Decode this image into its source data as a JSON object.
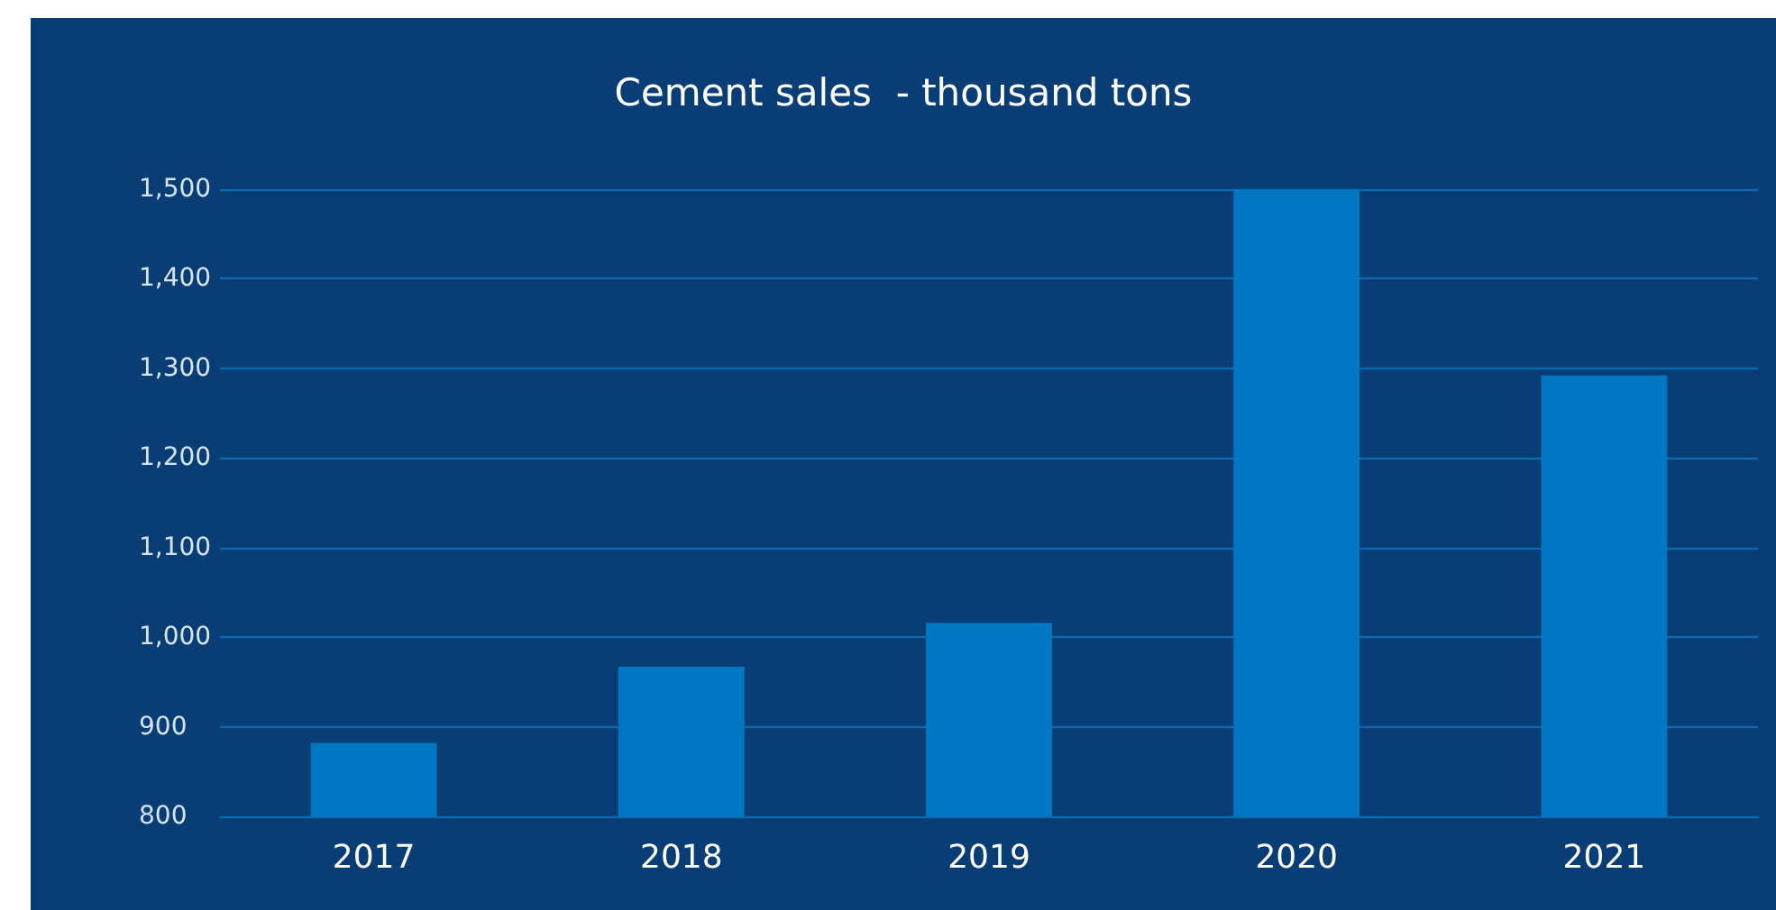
{
  "chart_data": {
    "type": "bar",
    "title": "Cement sales  - thousand tons",
    "categories": [
      "2017",
      "2018",
      "2019",
      "2020",
      "2021"
    ],
    "values": [
      882,
      967,
      1016,
      1500,
      1292
    ],
    "color": "#0077c0",
    "ylim": [
      800,
      1500
    ],
    "yticks": [
      {
        "value": 800,
        "label": "800"
      },
      {
        "value": 900,
        "label": "900"
      },
      {
        "value": 1000,
        "label": "1,000"
      },
      {
        "value": 1100,
        "label": "1,100"
      },
      {
        "value": 1200,
        "label": "1,200"
      },
      {
        "value": 1300,
        "label": "1,300"
      },
      {
        "value": 1400,
        "label": "1,400"
      },
      {
        "value": 1500,
        "label": "1,500"
      }
    ],
    "grid": true
  }
}
